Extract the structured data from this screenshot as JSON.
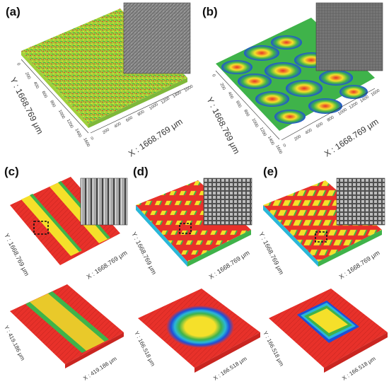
{
  "panels": [
    {
      "label": "(a)",
      "x_axis": "X : 1668.769 μm",
      "y_axis": "Y : 1668.769 μm",
      "ticks_x": [
        "0",
        "200",
        "400",
        "600",
        "800",
        "1000",
        "1200",
        "1400",
        "1600"
      ],
      "ticks_y": [
        "0",
        "200",
        "400",
        "600",
        "800",
        "1000",
        "1200",
        "1400",
        "1600"
      ]
    },
    {
      "label": "(b)",
      "x_axis": "X : 1668.769 μm",
      "y_axis": "Y : 1668.769 μm",
      "ticks_x": [
        "0",
        "200",
        "400",
        "600",
        "800",
        "1000",
        "1200",
        "1400",
        "1600"
      ],
      "ticks_y": [
        "0",
        "200",
        "400",
        "600",
        "800",
        "1000",
        "1200",
        "1400",
        "1600"
      ]
    },
    {
      "label": "(c)",
      "x_axis": "X : 1668.769 μm",
      "y_axis": "Y : 1668.769 μm"
    },
    {
      "label": "(d)",
      "x_axis": "X : 1668.769 μm",
      "y_axis": "Y : 1668.769 μm"
    },
    {
      "label": "(e)",
      "x_axis": "X : 1668.769 μm",
      "y_axis": "Y : 1668.769 μm"
    },
    {
      "x_axis": "X : 419.186 μm",
      "y_axis": "Y : 419.186 μm"
    },
    {
      "x_axis": "X : 166.518 μm",
      "y_axis": "Y : 166.518 μm"
    },
    {
      "x_axis": "X : 166.518 μm",
      "y_axis": "Y : 166.518 μm"
    }
  ],
  "colors": {
    "red": "#e8312a",
    "yellow": "#f5e02a",
    "green": "#3fb34a",
    "blue": "#1f4fd8",
    "cyan": "#2ab7d8"
  }
}
